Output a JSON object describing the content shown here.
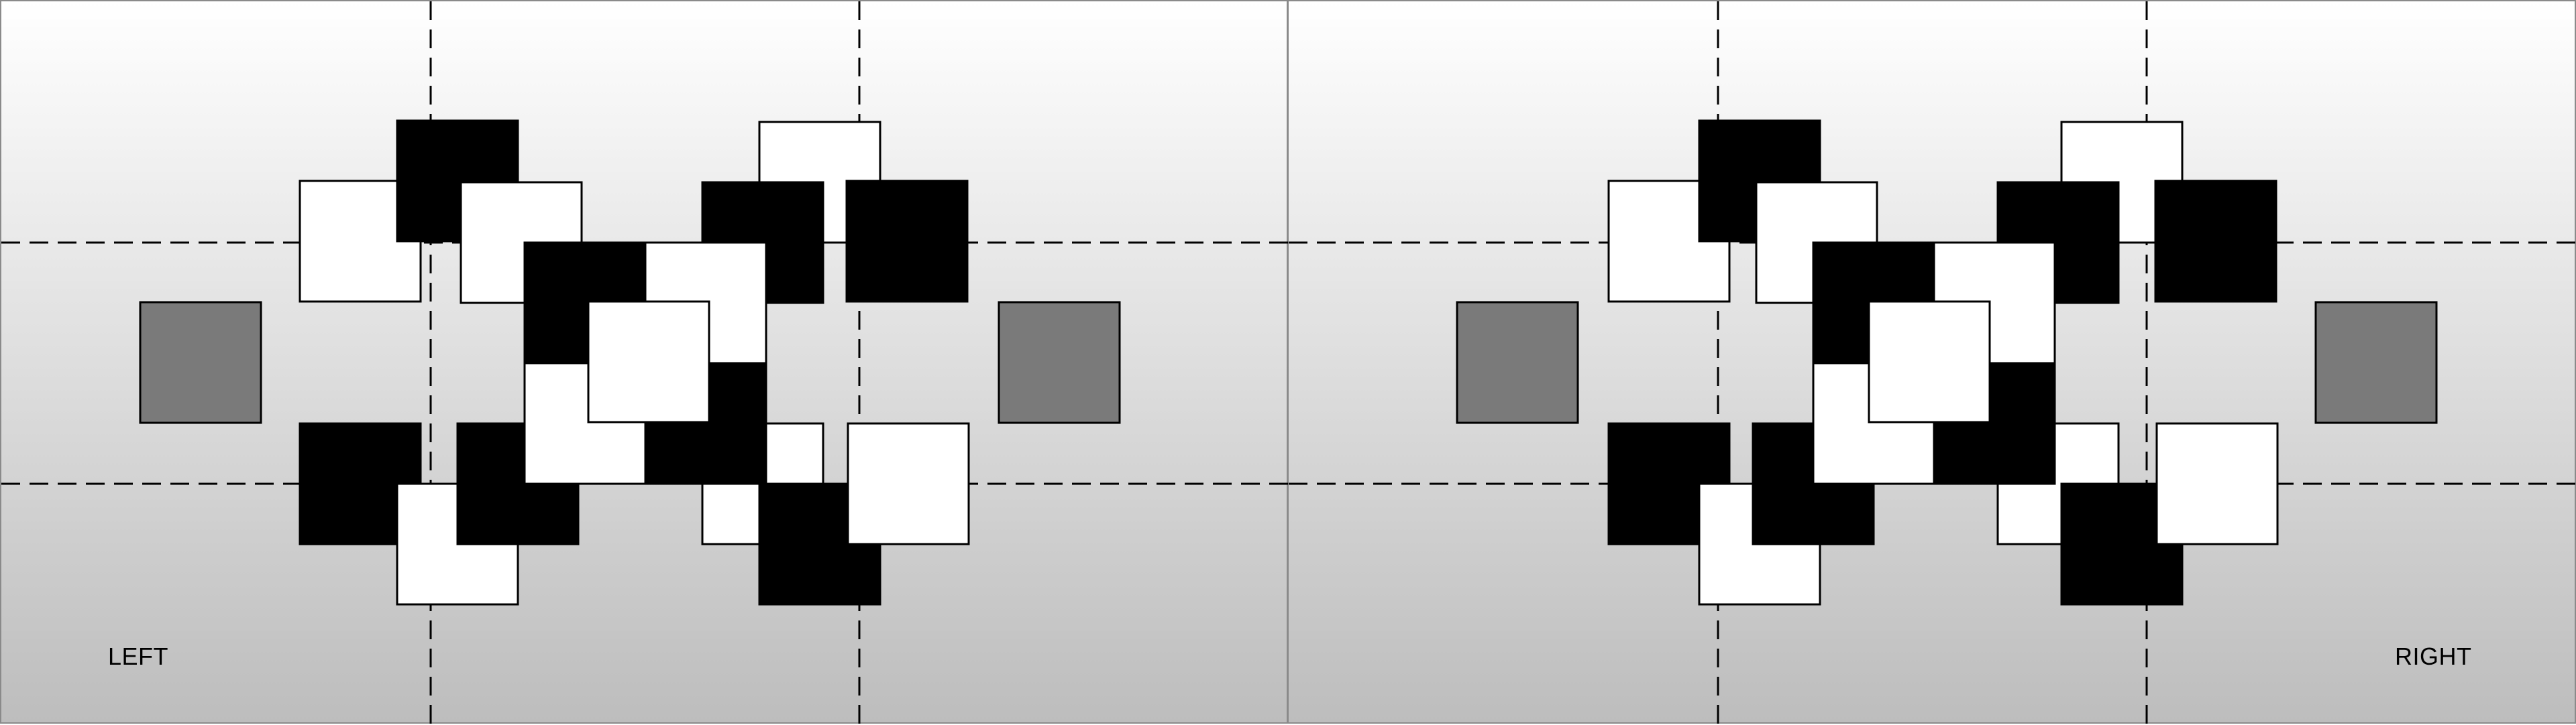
{
  "labels": {
    "left": "LEFT",
    "right": "RIGHT"
  },
  "colors": {
    "background_top": "#ffffff",
    "background_bottom": "#bdbdbd",
    "black_square": "#000000",
    "white_square": "#ffffff",
    "gray_square": "#7a7a7a",
    "dashed_line": "#000000"
  }
}
